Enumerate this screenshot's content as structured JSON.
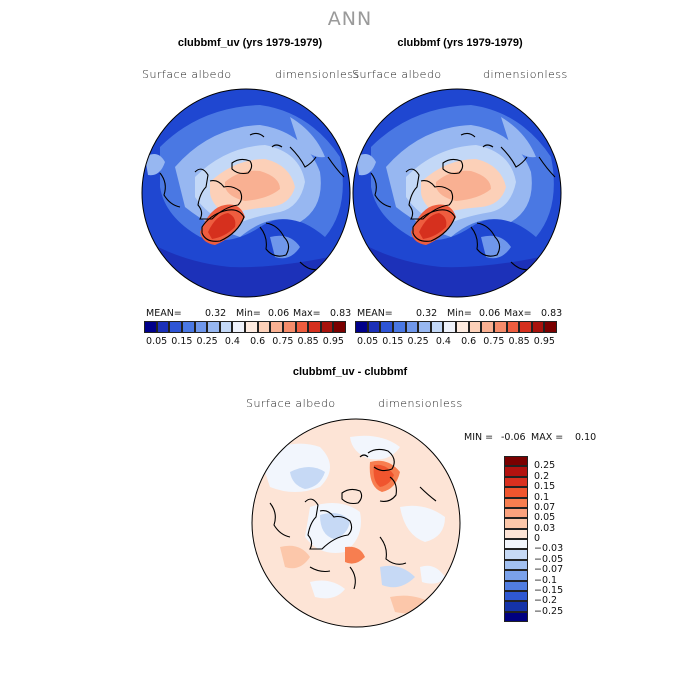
{
  "page": {
    "title": "ANN"
  },
  "panels": [
    {
      "title": "clubbmf_uv (yrs 1979-1979)",
      "left_label": "Surface albedo",
      "right_label": "dimensionless",
      "stats": {
        "mean_label": "MEAN=",
        "mean": "0.32",
        "min_label": "Min=",
        "min": "0.06",
        "max_label": "Max=",
        "max": "0.83"
      }
    },
    {
      "title": "clubbmf (yrs 1979-1979)",
      "left_label": "Surface albedo",
      "right_label": "dimensionless",
      "stats": {
        "mean_label": "MEAN=",
        "mean": "0.32",
        "min_label": "Min=",
        "min": "0.06",
        "max_label": "Max=",
        "max": "0.83"
      }
    },
    {
      "title": "clubbmf_uv - clubbmf",
      "left_label": "Surface albedo",
      "right_label": "dimensionless",
      "stats": {
        "min_label": "MIN =",
        "min": "-0.06",
        "max_label": "MAX =",
        "max": "0.10"
      }
    }
  ],
  "colorbar_top": {
    "colors": [
      "#00008b",
      "#1c31b9",
      "#2e55d6",
      "#4a78e3",
      "#6f97eb",
      "#97b7f1",
      "#c3d8f7",
      "#eef2fb",
      "#fdebe0",
      "#fcd0b8",
      "#f9b092",
      "#f58c6b",
      "#ee5d3f",
      "#d6301e",
      "#a8120c",
      "#7a0000"
    ],
    "labels": [
      "0.05",
      "0.15",
      "0.25",
      "0.4",
      "0.6",
      "0.75",
      "0.85",
      "0.95"
    ]
  },
  "colorbar_diff": {
    "colors": [
      "#7a0000",
      "#b3120f",
      "#d9301f",
      "#f0552e",
      "#f77e50",
      "#fba27e",
      "#fcc7aa",
      "#fde4d6",
      "#f2f6fd",
      "#c6d9f5",
      "#a2c0f0",
      "#7aa1ea",
      "#517de0",
      "#2f58d2",
      "#1533a8",
      "#000080"
    ],
    "labels": [
      "0.25",
      "0.2",
      "0.15",
      "0.1",
      "0.07",
      "0.05",
      "0.03",
      "0",
      "-0.03",
      "-0.05",
      "-0.07",
      "-0.1",
      "-0.15",
      "-0.2",
      "-0.25"
    ]
  }
}
